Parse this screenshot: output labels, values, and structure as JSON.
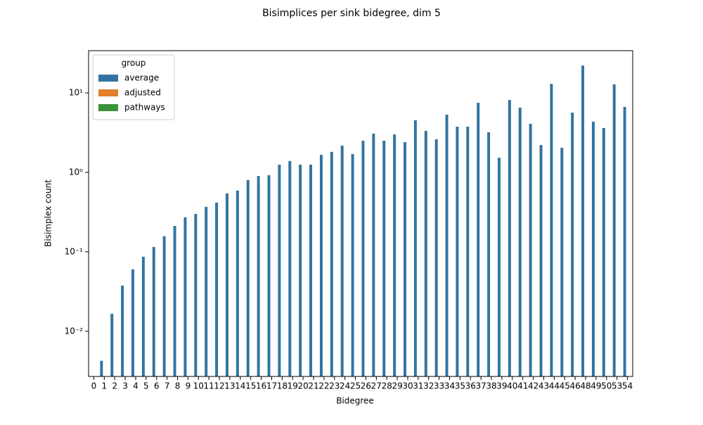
{
  "chart_data": {
    "type": "bar",
    "title": "Bisimplices per sink bidegree, dim 5",
    "xlabel": "Bidegree",
    "ylabel": "Bisimplex count",
    "categories": [
      "0",
      "1",
      "2",
      "3",
      "4",
      "5",
      "6",
      "7",
      "8",
      "9",
      "10",
      "11",
      "12",
      "13",
      "14",
      "15",
      "16",
      "17",
      "18",
      "19",
      "20",
      "21",
      "22",
      "23",
      "24",
      "25",
      "26",
      "27",
      "28",
      "29",
      "30",
      "31",
      "32",
      "33",
      "34",
      "35",
      "36",
      "37",
      "38",
      "39",
      "40",
      "41",
      "42",
      "43",
      "44",
      "45",
      "46",
      "48",
      "49",
      "50",
      "53",
      "54"
    ],
    "series": [
      {
        "name": "average",
        "color": "#3274a1",
        "values": [
          null,
          0.00425,
          0.0166,
          0.0376,
          0.06,
          0.0867,
          0.115,
          0.157,
          0.212,
          0.272,
          0.3,
          0.368,
          0.416,
          0.543,
          0.589,
          0.8,
          0.9,
          0.92,
          1.25,
          1.39,
          1.25,
          1.25,
          1.66,
          1.81,
          2.17,
          1.7,
          2.5,
          3.07,
          2.5,
          3.0,
          2.4,
          4.52,
          3.33,
          2.61,
          5.32,
          3.76,
          3.76,
          7.52,
          3.19,
          1.53,
          8.16,
          6.52,
          4.08,
          2.21,
          13.0,
          2.04,
          5.65,
          22.1,
          4.34,
          3.61,
          12.8,
          6.65
        ]
      },
      {
        "name": "adjusted",
        "color": "#e1812c",
        "values": [
          null,
          null,
          null,
          null,
          null,
          null,
          null,
          null,
          null,
          null,
          null,
          null,
          null,
          null,
          null,
          null,
          null,
          null,
          null,
          null,
          null,
          null,
          null,
          null,
          null,
          null,
          null,
          null,
          null,
          null,
          null,
          null,
          null,
          null,
          null,
          null,
          null,
          null,
          null,
          null,
          null,
          null,
          null,
          null,
          null,
          null,
          null,
          null,
          null,
          null,
          null,
          null
        ]
      },
      {
        "name": "pathways",
        "color": "#3a923a",
        "values": [
          null,
          null,
          null,
          null,
          null,
          null,
          null,
          null,
          null,
          null,
          null,
          null,
          null,
          null,
          null,
          null,
          null,
          null,
          null,
          null,
          null,
          null,
          null,
          null,
          null,
          null,
          null,
          null,
          null,
          null,
          null,
          null,
          null,
          null,
          null,
          null,
          null,
          null,
          null,
          null,
          null,
          null,
          null,
          null,
          null,
          null,
          null,
          null,
          null,
          null,
          null,
          null
        ]
      }
    ],
    "ylim": [
      0.0027,
      34
    ],
    "log_y": true,
    "yticks": [
      {
        "value": 0.01,
        "label": "10⁻²"
      },
      {
        "value": 0.1,
        "label": "10⁻¹"
      },
      {
        "value": 1,
        "label": "10⁰"
      },
      {
        "value": 10,
        "label": "10¹"
      }
    ],
    "legend_title": "group",
    "legend": "upper left"
  }
}
